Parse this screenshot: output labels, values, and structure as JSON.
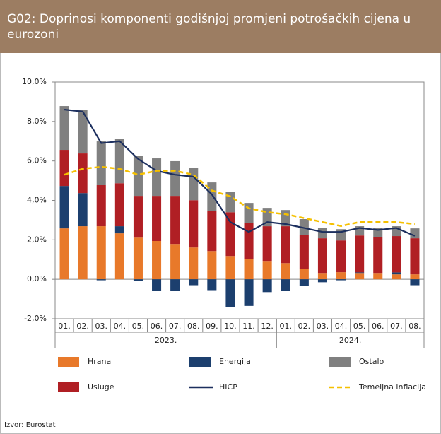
{
  "chart_data": {
    "type": "bar",
    "title": "G02: Doprinosi komponenti godišnjoj promjeni potrošačkih cijena u eurozoni",
    "source": "Izvor: Eurostat",
    "categories": [
      "01.",
      "02.",
      "03.",
      "04.",
      "05.",
      "06.",
      "07.",
      "08.",
      "09.",
      "10.",
      "11.",
      "12.",
      "01.",
      "02.",
      "03.",
      "04.",
      "05.",
      "06.",
      "07.",
      "08."
    ],
    "groups": [
      {
        "label": "2023.",
        "categories": 12
      },
      {
        "label": "2024.",
        "categories": 8
      }
    ],
    "stacked": true,
    "series": [
      {
        "name": "Hrana",
        "type": "bar",
        "color": "#e8792a",
        "values": [
          2.58,
          2.69,
          2.69,
          2.33,
          2.11,
          1.94,
          1.79,
          1.61,
          1.43,
          1.18,
          1.04,
          0.93,
          0.82,
          0.54,
          0.32,
          0.36,
          0.32,
          0.32,
          0.25,
          0.25
        ]
      },
      {
        "name": "Energija",
        "type": "bar",
        "color": "#1c3f6e",
        "values": [
          2.15,
          1.68,
          -0.05,
          0.36,
          -0.1,
          -0.6,
          -0.6,
          -0.3,
          -0.55,
          -1.4,
          -1.35,
          -0.65,
          -0.6,
          -0.35,
          -0.15,
          -0.05,
          0.03,
          0,
          0.1,
          -0.3
        ]
      },
      {
        "name": "Ostalo",
        "type": "bar",
        "color": "#808080",
        "values": [
          2.22,
          2.19,
          2.22,
          2.23,
          2.01,
          1.9,
          1.76,
          1.62,
          1.43,
          1.04,
          1.0,
          0.93,
          0.82,
          0.79,
          0.54,
          0.57,
          0.47,
          0.47,
          0.5,
          0.5
        ]
      },
      {
        "name": "Usluge",
        "type": "bar",
        "color": "#b01f24",
        "values": [
          1.83,
          2.01,
          2.08,
          2.18,
          2.12,
          2.29,
          2.44,
          2.4,
          2.05,
          2.22,
          1.83,
          1.76,
          1.87,
          1.72,
          1.76,
          1.61,
          1.87,
          1.83,
          1.84,
          1.83
        ]
      },
      {
        "name": "HICP",
        "type": "line",
        "color": "#1c2f5e",
        "values": [
          8.6,
          8.5,
          6.9,
          7.0,
          6.1,
          5.5,
          5.3,
          5.2,
          4.3,
          2.9,
          2.4,
          2.9,
          2.8,
          2.6,
          2.4,
          2.4,
          2.6,
          2.5,
          2.6,
          2.2
        ]
      },
      {
        "name": "Temeljna inflacija",
        "type": "line",
        "style": "dashed",
        "color": "#f5c000",
        "values": [
          5.3,
          5.6,
          5.7,
          5.6,
          5.3,
          5.5,
          5.5,
          5.3,
          4.5,
          4.2,
          3.6,
          3.4,
          3.3,
          3.1,
          2.9,
          2.7,
          2.9,
          2.9,
          2.9,
          2.8
        ]
      }
    ],
    "ylim": [
      -2,
      10
    ],
    "yticks": [
      {
        "value": -2,
        "label": "-2,0%"
      },
      {
        "value": 0,
        "label": "0,0%"
      },
      {
        "value": 2,
        "label": "2,0%"
      },
      {
        "value": 4,
        "label": "4,0%"
      },
      {
        "value": 6,
        "label": "6,0%"
      },
      {
        "value": 8,
        "label": "8,0%"
      },
      {
        "value": 10,
        "label": "10,0%"
      }
    ]
  }
}
